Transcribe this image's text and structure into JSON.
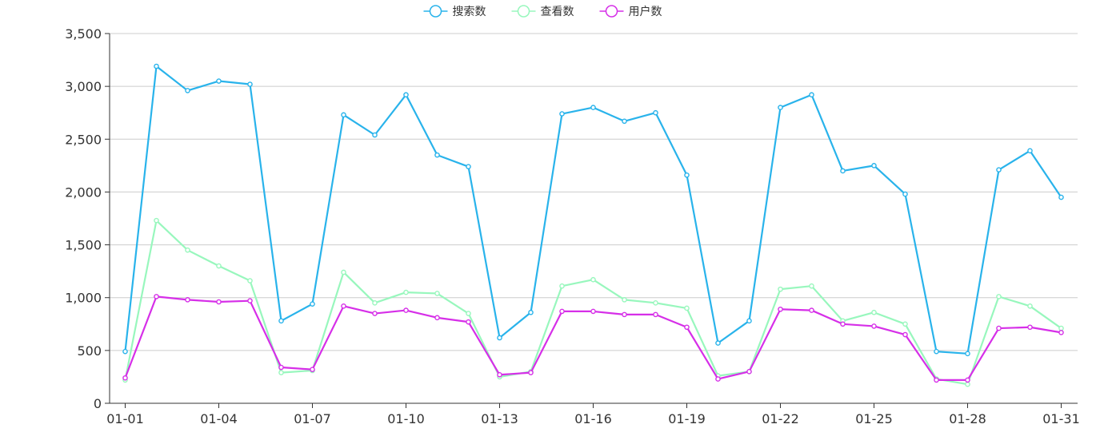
{
  "chart_data": {
    "type": "line",
    "categories": [
      "01-01",
      "01-02",
      "01-03",
      "01-04",
      "01-05",
      "01-06",
      "01-07",
      "01-08",
      "01-09",
      "01-10",
      "01-11",
      "01-12",
      "01-13",
      "01-14",
      "01-15",
      "01-16",
      "01-17",
      "01-18",
      "01-19",
      "01-20",
      "01-21",
      "01-22",
      "01-23",
      "01-24",
      "01-25",
      "01-26",
      "01-27",
      "01-28",
      "01-29",
      "01-30",
      "01-31"
    ],
    "x_tick_labels": [
      "01-01",
      "01-04",
      "01-07",
      "01-10",
      "01-13",
      "01-16",
      "01-19",
      "01-22",
      "01-25",
      "01-28",
      "01-31"
    ],
    "y_tick_labels": [
      "0",
      "500",
      "1,000",
      "1,500",
      "2,000",
      "2,500",
      "3,000",
      "3,500"
    ],
    "ylim": [
      0,
      3500
    ],
    "grid": true,
    "legend_position": "top-center",
    "series": [
      {
        "name": "搜索数",
        "color": "#29b3eb",
        "values": [
          490,
          3190,
          2960,
          3050,
          3020,
          780,
          940,
          2730,
          2540,
          2920,
          2350,
          2240,
          620,
          860,
          2740,
          2800,
          2670,
          2750,
          2160,
          570,
          780,
          2800,
          2920,
          2200,
          2250,
          1980,
          490,
          470,
          2210,
          2390,
          1950
        ]
      },
      {
        "name": "查看数",
        "color": "#98f7bd",
        "values": [
          220,
          1730,
          1450,
          1300,
          1160,
          290,
          310,
          1240,
          950,
          1050,
          1040,
          850,
          250,
          300,
          1110,
          1170,
          980,
          950,
          900,
          260,
          300,
          1080,
          1110,
          780,
          860,
          750,
          230,
          180,
          1010,
          920,
          710
        ]
      },
      {
        "name": "用户数",
        "color": "#d62fe8",
        "values": [
          240,
          1010,
          980,
          960,
          970,
          340,
          320,
          920,
          850,
          880,
          810,
          770,
          270,
          290,
          870,
          870,
          840,
          840,
          720,
          230,
          300,
          890,
          880,
          750,
          730,
          650,
          220,
          220,
          710,
          720,
          670
        ]
      }
    ]
  }
}
